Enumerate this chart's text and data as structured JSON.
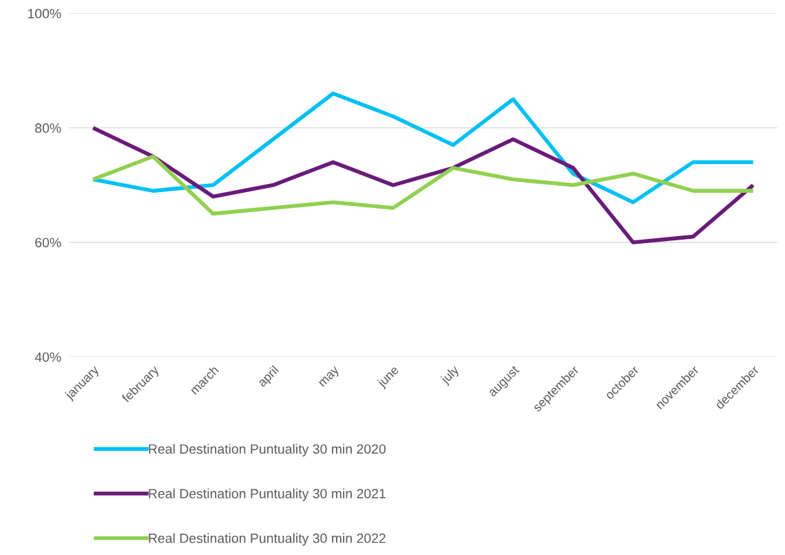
{
  "chart_data": {
    "type": "line",
    "categories": [
      "january",
      "february",
      "march",
      "april",
      "may",
      "june",
      "july",
      "august",
      "september",
      "october",
      "november",
      "december"
    ],
    "series": [
      {
        "name": "Real Destination Puntuality 30 min 2020",
        "color": "#00c0f3",
        "values": [
          71,
          69,
          70,
          78,
          86,
          82,
          77,
          85,
          72,
          67,
          74,
          74
        ]
      },
      {
        "name": "Real Destination Puntuality 30 min 2021",
        "color": "#6a1b7a",
        "values": [
          80,
          75,
          68,
          70,
          74,
          70,
          73,
          78,
          73,
          60,
          61,
          70
        ]
      },
      {
        "name": "Real Destination Puntuality 30 min 2022",
        "color": "#92d050",
        "values": [
          71,
          75,
          65,
          66,
          67,
          66,
          73,
          71,
          70,
          72,
          69,
          69
        ]
      }
    ],
    "ylim": [
      40,
      100
    ],
    "yticks": [
      {
        "value": 40,
        "label": "40%"
      },
      {
        "value": 60,
        "label": "60%"
      },
      {
        "value": 80,
        "label": "80%"
      },
      {
        "value": 100,
        "label": "100%"
      }
    ],
    "grid": "y",
    "legend": "bottom",
    "marker": "none",
    "line_style": "solid"
  }
}
